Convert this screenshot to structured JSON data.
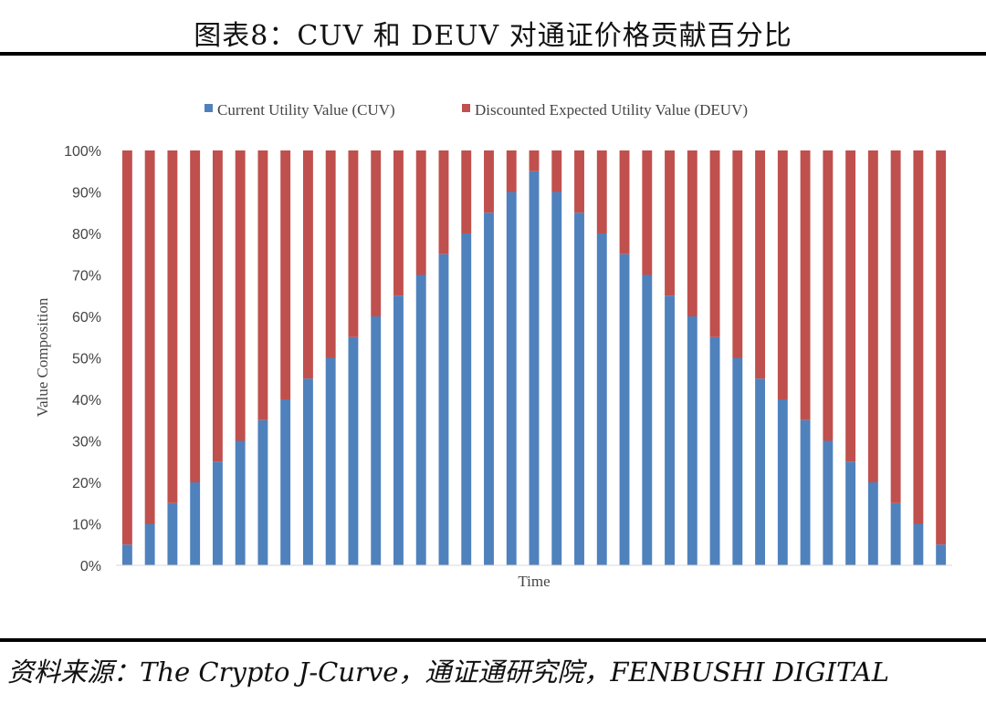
{
  "figure": {
    "title": "图表8：CUV 和 DEUV 对通证价格贡献百分比",
    "source": "资料来源：The Crypto J-Curve，通证通研究院，FENBUSHI DIGITAL"
  },
  "chart_data": {
    "type": "bar",
    "stacked": true,
    "title": "",
    "xlabel": "Time",
    "ylabel": "Value Composition",
    "ylim": [
      0,
      100
    ],
    "yticks": [
      "0%",
      "10%",
      "20%",
      "30%",
      "40%",
      "50%",
      "60%",
      "70%",
      "80%",
      "90%",
      "100%"
    ],
    "legend_position": "top",
    "grid": false,
    "series": [
      {
        "name": "Current Utility Value (CUV)",
        "color": "#4f81bd",
        "values": [
          5,
          10,
          15,
          20,
          25,
          30,
          35,
          40,
          45,
          50,
          55,
          60,
          65,
          70,
          75,
          80,
          85,
          90,
          95,
          90,
          85,
          80,
          75,
          70,
          65,
          60,
          55,
          50,
          45,
          40,
          35,
          30,
          25,
          20,
          15,
          10,
          5
        ]
      },
      {
        "name": "Discounted Expected Utility Value (DEUV)",
        "color": "#c0504d",
        "values": [
          95,
          90,
          85,
          80,
          75,
          70,
          65,
          60,
          55,
          50,
          45,
          40,
          35,
          30,
          25,
          20,
          15,
          10,
          5,
          10,
          15,
          20,
          25,
          30,
          35,
          40,
          45,
          50,
          55,
          60,
          65,
          70,
          75,
          80,
          85,
          90,
          95
        ]
      }
    ]
  }
}
